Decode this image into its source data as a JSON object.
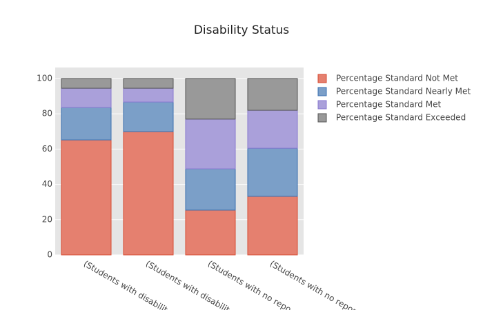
{
  "chart_data": {
    "type": "stacked_bar",
    "title": "Disability Status",
    "categories": [
      "(Students with disabilit",
      "(Students with disabilit",
      "(Students with no repo",
      "(Students with no repor"
    ],
    "series": [
      {
        "name": "Percentage Standard Not Met",
        "color": "#e5806f",
        "values": [
          65.2,
          69.9,
          25.4,
          33.2
        ]
      },
      {
        "name": "Percentage Standard Nearly Met",
        "color": "#7b9fc8",
        "values": [
          18.4,
          16.8,
          23.4,
          27.3
        ]
      },
      {
        "name": "Percentage Standard Met",
        "color": "#aaa0da",
        "values": [
          10.9,
          7.8,
          28.2,
          21.5
        ]
      },
      {
        "name": "Percentage Standard Exceeded",
        "color": "#999999",
        "values": [
          5.5,
          5.5,
          23,
          18
        ]
      }
    ],
    "ylim": [
      0,
      106.25
    ],
    "yticks": [
      0,
      20,
      40,
      60,
      80,
      100
    ],
    "grid": true,
    "legend": "right"
  }
}
